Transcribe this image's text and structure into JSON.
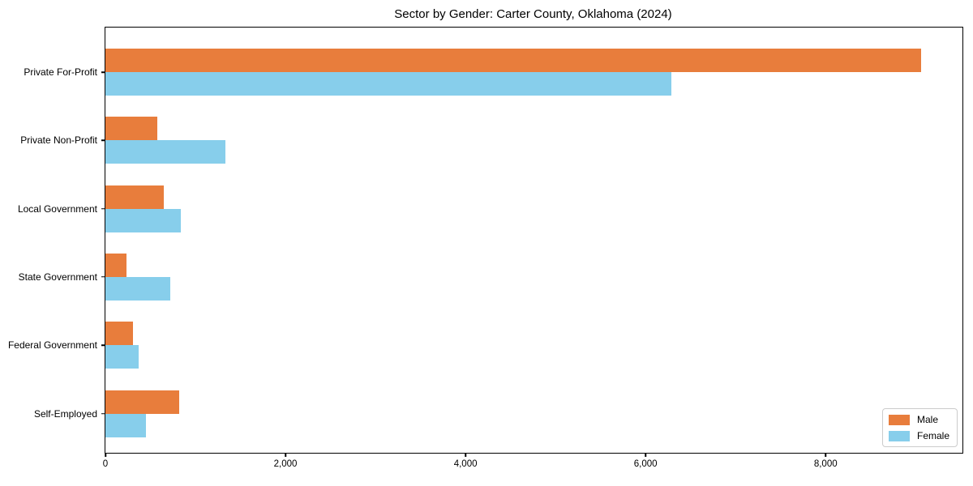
{
  "chart_data": {
    "type": "bar",
    "orientation": "horizontal",
    "title": "Sector by Gender: Carter County, Oklahoma (2024)",
    "categories": [
      "Private For-Profit",
      "Private Non-Profit",
      "Local Government",
      "State Government",
      "Federal Government",
      "Self-Employed"
    ],
    "series": [
      {
        "name": "Male",
        "color": "#e87d3c",
        "values": [
          9060,
          580,
          650,
          230,
          310,
          820
        ]
      },
      {
        "name": "Female",
        "color": "#87ceeb",
        "values": [
          6290,
          1330,
          840,
          720,
          370,
          450
        ]
      }
    ],
    "xlabel": "",
    "ylabel": "",
    "xlim": [
      0,
      9520
    ],
    "x_ticks": [
      0,
      2000,
      4000,
      6000,
      8000
    ],
    "x_tick_labels": [
      "0",
      "2,000",
      "4,000",
      "6,000",
      "8,000"
    ],
    "grid": false,
    "plot_background": "#ffffff",
    "legend": {
      "position": "lower right"
    }
  }
}
